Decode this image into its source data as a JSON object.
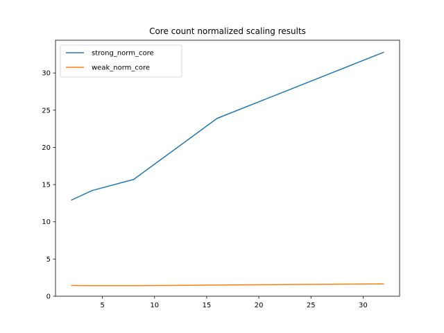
{
  "chart_data": {
    "type": "line",
    "title": "Core count normalized scaling results",
    "xlabel": "",
    "ylabel": "",
    "x": [
      2,
      4,
      8,
      16,
      32
    ],
    "series": [
      {
        "name": "strong_norm_core",
        "values": [
          12.9,
          14.2,
          15.7,
          23.9,
          32.8
        ],
        "color": "#1f77b4"
      },
      {
        "name": "weak_norm_core",
        "values": [
          1.45,
          1.42,
          1.42,
          1.5,
          1.66
        ],
        "color": "#ff7f0e"
      }
    ],
    "xlim": [
      0.5,
      33.5
    ],
    "ylim": [
      0,
      34.4
    ],
    "xticks": [
      5,
      10,
      15,
      20,
      25,
      30
    ],
    "yticks": [
      0,
      5,
      10,
      15,
      20,
      25,
      30
    ],
    "grid": false,
    "legend": "top-left"
  }
}
